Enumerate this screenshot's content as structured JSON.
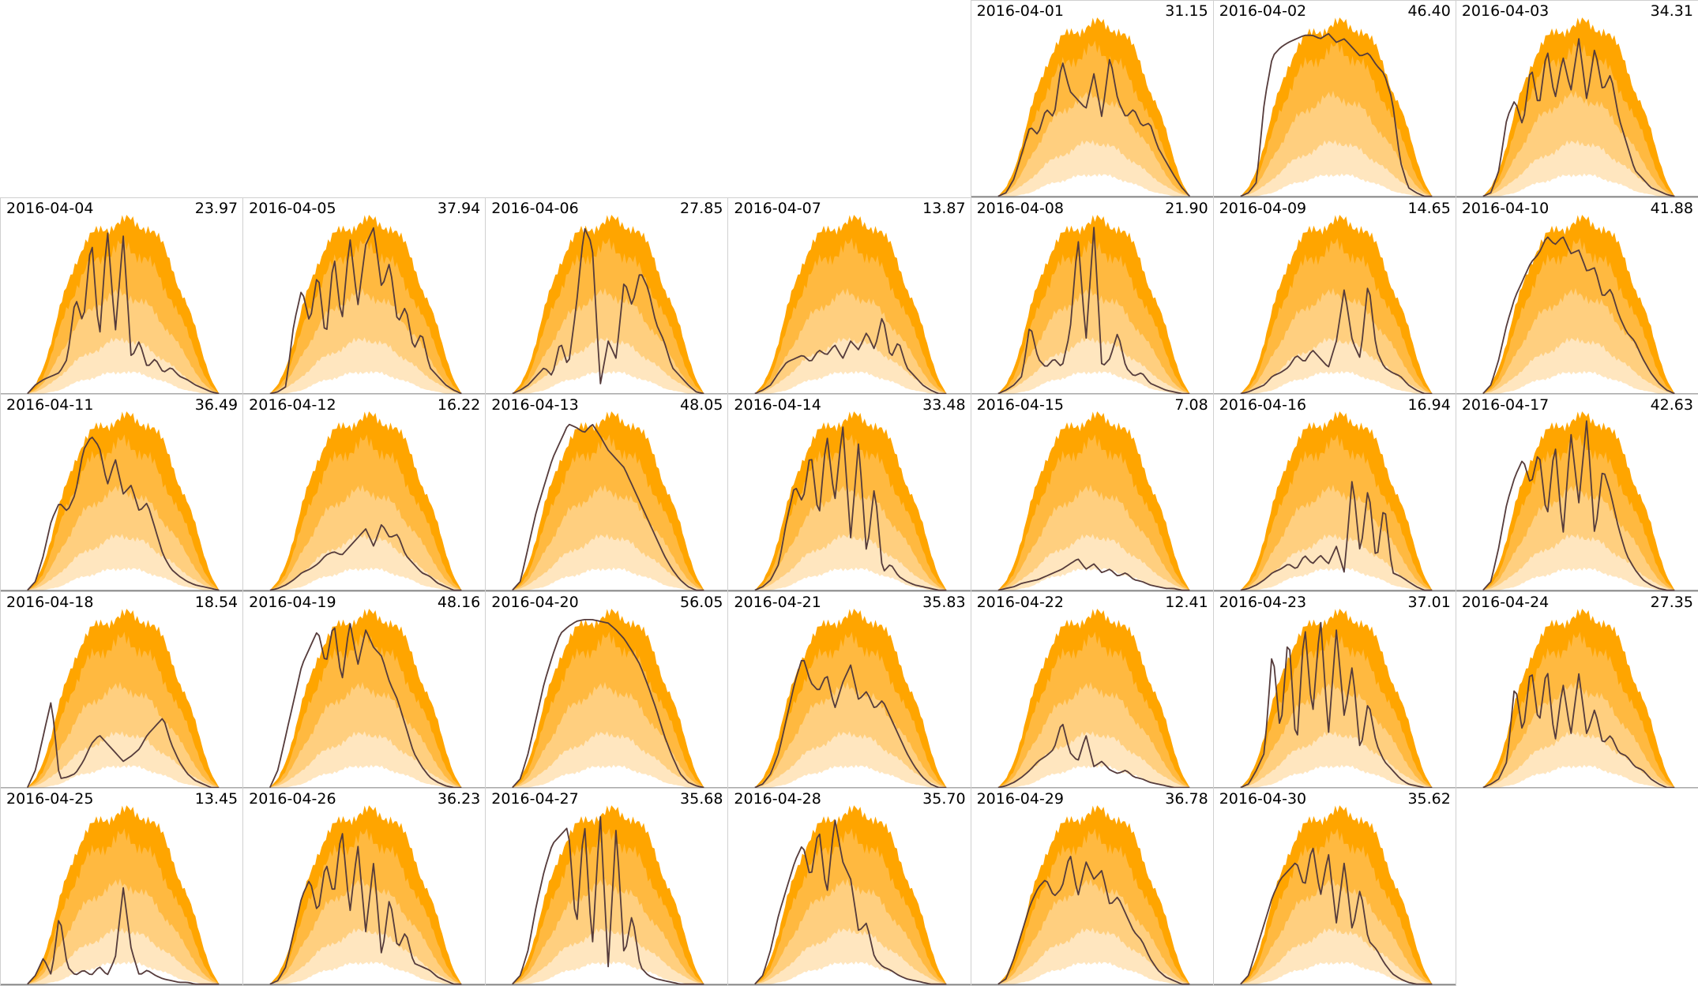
{
  "chart_data": {
    "type": "area",
    "title": "",
    "layout": "calendar",
    "month": "2016-04",
    "first_weekday_column": 4,
    "columns": 7,
    "colors": {
      "band_max": "#ffa500",
      "band_p75": "#ffb940",
      "band_p50": "#ffcf7f",
      "band_p25": "#ffe6bf",
      "band_min": "#ffffff",
      "line": "#553b3b",
      "border": "#d0d0d0",
      "axis": "#777777"
    },
    "bands": {
      "max": [
        0,
        0.05,
        0.15,
        0.3,
        0.48,
        0.62,
        0.75,
        0.85,
        0.9,
        0.93,
        0.95,
        0.97,
        0.98,
        0.99,
        0.97,
        0.95,
        0.9,
        0.85,
        0.75,
        0.6,
        0.5,
        0.38,
        0.22,
        0.08,
        0
      ],
      "p75": [
        0,
        0.03,
        0.1,
        0.22,
        0.36,
        0.5,
        0.6,
        0.68,
        0.74,
        0.78,
        0.8,
        0.82,
        0.84,
        0.83,
        0.8,
        0.76,
        0.7,
        0.62,
        0.55,
        0.45,
        0.35,
        0.24,
        0.12,
        0.04,
        0
      ],
      "p50": [
        0,
        0.02,
        0.06,
        0.13,
        0.22,
        0.3,
        0.38,
        0.44,
        0.48,
        0.52,
        0.55,
        0.56,
        0.57,
        0.56,
        0.53,
        0.5,
        0.46,
        0.4,
        0.34,
        0.27,
        0.2,
        0.13,
        0.06,
        0.02,
        0
      ],
      "p25": [
        0,
        0.01,
        0.03,
        0.06,
        0.1,
        0.14,
        0.18,
        0.21,
        0.24,
        0.26,
        0.28,
        0.3,
        0.32,
        0.3,
        0.28,
        0.26,
        0.23,
        0.2,
        0.16,
        0.12,
        0.09,
        0.06,
        0.03,
        0.01,
        0
      ],
      "min": [
        0,
        0,
        0,
        0.01,
        0.02,
        0.04,
        0.06,
        0.08,
        0.09,
        0.1,
        0.11,
        0.12,
        0.13,
        0.12,
        0.11,
        0.1,
        0.09,
        0.07,
        0.05,
        0.03,
        0.02,
        0.01,
        0,
        0,
        0
      ]
    },
    "days": [
      {
        "date": "2016-04-01",
        "total": "31.15",
        "profile": [
          0,
          0.02,
          0.1,
          0.25,
          0.4,
          0.35,
          0.5,
          0.45,
          0.78,
          0.6,
          0.55,
          0.5,
          0.7,
          0.45,
          0.8,
          0.55,
          0.45,
          0.5,
          0.4,
          0.42,
          0.28,
          0.2,
          0.12,
          0.05,
          0
        ]
      },
      {
        "date": "2016-04-02",
        "total": "46.40",
        "profile": [
          0,
          0.02,
          0.08,
          0.55,
          0.8,
          0.85,
          0.88,
          0.9,
          0.92,
          0.92,
          0.9,
          0.93,
          0.88,
          0.9,
          0.85,
          0.8,
          0.82,
          0.75,
          0.7,
          0.55,
          0.2,
          0.05,
          0.02,
          0,
          0
        ]
      },
      {
        "date": "2016-04-03",
        "total": "34.31",
        "profile": [
          0,
          0.02,
          0.15,
          0.45,
          0.55,
          0.4,
          0.75,
          0.5,
          0.85,
          0.55,
          0.8,
          0.6,
          0.9,
          0.55,
          0.85,
          0.6,
          0.7,
          0.45,
          0.3,
          0.15,
          0.1,
          0.05,
          0.03,
          0.01,
          0
        ]
      },
      {
        "date": "2016-04-04",
        "total": "23.97",
        "profile": [
          0,
          0.05,
          0.08,
          0.1,
          0.12,
          0.2,
          0.55,
          0.4,
          0.9,
          0.3,
          0.95,
          0.35,
          0.9,
          0.2,
          0.3,
          0.15,
          0.2,
          0.12,
          0.15,
          0.1,
          0.08,
          0.05,
          0.03,
          0.01,
          0
        ]
      },
      {
        "date": "2016-04-05",
        "total": "37.94",
        "profile": [
          0,
          0.01,
          0.04,
          0.4,
          0.6,
          0.4,
          0.7,
          0.3,
          0.8,
          0.4,
          0.9,
          0.5,
          0.85,
          0.95,
          0.6,
          0.75,
          0.4,
          0.5,
          0.25,
          0.35,
          0.15,
          0.1,
          0.05,
          0.02,
          0
        ]
      },
      {
        "date": "2016-04-06",
        "total": "27.85",
        "profile": [
          0,
          0.02,
          0.05,
          0.1,
          0.15,
          0.1,
          0.3,
          0.15,
          0.5,
          0.95,
          0.85,
          0.05,
          0.3,
          0.2,
          0.65,
          0.5,
          0.7,
          0.6,
          0.4,
          0.3,
          0.15,
          0.1,
          0.05,
          0.01,
          0
        ]
      },
      {
        "date": "2016-04-07",
        "total": "13.87",
        "profile": [
          0,
          0.02,
          0.05,
          0.12,
          0.18,
          0.2,
          0.22,
          0.18,
          0.25,
          0.22,
          0.28,
          0.2,
          0.3,
          0.25,
          0.35,
          0.25,
          0.45,
          0.2,
          0.3,
          0.15,
          0.1,
          0.05,
          0.02,
          0,
          0
        ]
      },
      {
        "date": "2016-04-08",
        "total": "21.90",
        "profile": [
          0,
          0.02,
          0.05,
          0.1,
          0.4,
          0.2,
          0.15,
          0.2,
          0.15,
          0.35,
          0.9,
          0.3,
          0.95,
          0.15,
          0.2,
          0.35,
          0.15,
          0.1,
          0.12,
          0.06,
          0.04,
          0.02,
          0.01,
          0,
          0
        ]
      },
      {
        "date": "2016-04-09",
        "total": "14.65",
        "profile": [
          0,
          0.01,
          0.03,
          0.05,
          0.1,
          0.12,
          0.15,
          0.22,
          0.18,
          0.25,
          0.2,
          0.15,
          0.3,
          0.6,
          0.3,
          0.2,
          0.65,
          0.25,
          0.15,
          0.12,
          0.1,
          0.05,
          0.02,
          0,
          0
        ]
      },
      {
        "date": "2016-04-10",
        "total": "41.88",
        "profile": [
          0,
          0.05,
          0.2,
          0.4,
          0.55,
          0.65,
          0.75,
          0.8,
          0.9,
          0.85,
          0.9,
          0.8,
          0.82,
          0.7,
          0.72,
          0.55,
          0.6,
          0.45,
          0.35,
          0.3,
          0.2,
          0.12,
          0.06,
          0.02,
          0
        ]
      },
      {
        "date": "2016-04-11",
        "total": "36.49",
        "profile": [
          0,
          0.05,
          0.2,
          0.4,
          0.5,
          0.45,
          0.55,
          0.8,
          0.88,
          0.82,
          0.6,
          0.75,
          0.55,
          0.6,
          0.45,
          0.5,
          0.35,
          0.2,
          0.12,
          0.08,
          0.05,
          0.03,
          0.02,
          0.01,
          0
        ]
      },
      {
        "date": "2016-04-12",
        "total": "16.22",
        "profile": [
          0,
          0.01,
          0.03,
          0.06,
          0.1,
          0.12,
          0.15,
          0.2,
          0.22,
          0.2,
          0.25,
          0.3,
          0.35,
          0.25,
          0.38,
          0.3,
          0.32,
          0.2,
          0.15,
          0.1,
          0.08,
          0.04,
          0.02,
          0,
          0
        ]
      },
      {
        "date": "2016-04-13",
        "total": "48.05",
        "profile": [
          0,
          0.05,
          0.25,
          0.45,
          0.6,
          0.75,
          0.85,
          0.95,
          0.93,
          0.9,
          0.95,
          0.88,
          0.8,
          0.75,
          0.7,
          0.6,
          0.5,
          0.4,
          0.3,
          0.2,
          0.12,
          0.06,
          0.02,
          0,
          0
        ]
      },
      {
        "date": "2016-04-14",
        "total": "33.48",
        "profile": [
          0,
          0.02,
          0.06,
          0.15,
          0.4,
          0.6,
          0.5,
          0.8,
          0.4,
          0.9,
          0.5,
          0.95,
          0.3,
          0.85,
          0.2,
          0.6,
          0.1,
          0.15,
          0.08,
          0.05,
          0.03,
          0.02,
          0.01,
          0,
          0
        ]
      },
      {
        "date": "2016-04-15",
        "total": "7.08",
        "profile": [
          0,
          0.01,
          0.02,
          0.04,
          0.05,
          0.06,
          0.08,
          0.1,
          0.12,
          0.15,
          0.18,
          0.12,
          0.15,
          0.1,
          0.12,
          0.08,
          0.1,
          0.06,
          0.05,
          0.03,
          0.02,
          0.01,
          0.01,
          0,
          0
        ]
      },
      {
        "date": "2016-04-16",
        "total": "16.94",
        "profile": [
          0,
          0.01,
          0.03,
          0.06,
          0.1,
          0.12,
          0.15,
          0.12,
          0.2,
          0.15,
          0.2,
          0.15,
          0.25,
          0.1,
          0.65,
          0.2,
          0.6,
          0.15,
          0.5,
          0.1,
          0.08,
          0.05,
          0.02,
          0,
          0
        ]
      },
      {
        "date": "2016-04-17",
        "total": "42.63",
        "profile": [
          0,
          0.05,
          0.25,
          0.5,
          0.65,
          0.75,
          0.6,
          0.8,
          0.4,
          0.85,
          0.3,
          0.9,
          0.5,
          0.98,
          0.3,
          0.7,
          0.55,
          0.35,
          0.2,
          0.12,
          0.06,
          0.03,
          0.01,
          0,
          0
        ]
      },
      {
        "date": "2016-04-18",
        "total": "18.54",
        "profile": [
          0,
          0.1,
          0.3,
          0.5,
          0.05,
          0.06,
          0.08,
          0.15,
          0.25,
          0.3,
          0.25,
          0.2,
          0.15,
          0.18,
          0.22,
          0.3,
          0.35,
          0.4,
          0.25,
          0.15,
          0.08,
          0.04,
          0.02,
          0,
          0
        ]
      },
      {
        "date": "2016-04-19",
        "total": "48.16",
        "profile": [
          0,
          0.1,
          0.3,
          0.5,
          0.7,
          0.8,
          0.9,
          0.7,
          0.95,
          0.6,
          0.95,
          0.7,
          0.9,
          0.8,
          0.75,
          0.6,
          0.5,
          0.35,
          0.2,
          0.12,
          0.06,
          0.03,
          0.01,
          0,
          0
        ]
      },
      {
        "date": "2016-04-20",
        "total": "56.05",
        "profile": [
          0,
          0.05,
          0.2,
          0.4,
          0.6,
          0.75,
          0.88,
          0.92,
          0.95,
          0.96,
          0.96,
          0.95,
          0.94,
          0.9,
          0.85,
          0.78,
          0.7,
          0.58,
          0.45,
          0.3,
          0.18,
          0.08,
          0.03,
          0.01,
          0
        ]
      },
      {
        "date": "2016-04-21",
        "total": "35.83",
        "profile": [
          0,
          0.02,
          0.08,
          0.2,
          0.4,
          0.6,
          0.75,
          0.6,
          0.55,
          0.65,
          0.45,
          0.6,
          0.7,
          0.5,
          0.55,
          0.45,
          0.5,
          0.4,
          0.3,
          0.2,
          0.12,
          0.06,
          0.02,
          0,
          0
        ]
      },
      {
        "date": "2016-04-22",
        "total": "12.41",
        "profile": [
          0,
          0.01,
          0.03,
          0.06,
          0.1,
          0.15,
          0.18,
          0.22,
          0.38,
          0.2,
          0.15,
          0.3,
          0.12,
          0.15,
          0.1,
          0.08,
          0.1,
          0.06,
          0.05,
          0.03,
          0.02,
          0.01,
          0,
          0,
          0
        ]
      },
      {
        "date": "2016-04-23",
        "total": "37.01",
        "profile": [
          0,
          0.02,
          0.1,
          0.2,
          0.8,
          0.3,
          0.9,
          0.2,
          0.95,
          0.4,
          0.98,
          0.3,
          0.9,
          0.4,
          0.7,
          0.2,
          0.5,
          0.25,
          0.15,
          0.1,
          0.05,
          0.02,
          0.01,
          0,
          0
        ]
      },
      {
        "date": "2016-04-24",
        "total": "27.35",
        "profile": [
          0,
          0.02,
          0.05,
          0.15,
          0.6,
          0.3,
          0.7,
          0.35,
          0.7,
          0.25,
          0.6,
          0.3,
          0.65,
          0.3,
          0.45,
          0.25,
          0.3,
          0.2,
          0.18,
          0.12,
          0.1,
          0.05,
          0.02,
          0,
          0
        ]
      },
      {
        "date": "2016-04-25",
        "total": "13.45",
        "profile": [
          0,
          0.05,
          0.15,
          0.05,
          0.4,
          0.1,
          0.05,
          0.08,
          0.05,
          0.1,
          0.05,
          0.15,
          0.55,
          0.2,
          0.05,
          0.08,
          0.05,
          0.03,
          0.02,
          0.01,
          0.01,
          0,
          0,
          0,
          0
        ]
      },
      {
        "date": "2016-04-26",
        "total": "36.23",
        "profile": [
          0,
          0.02,
          0.1,
          0.3,
          0.5,
          0.6,
          0.4,
          0.7,
          0.5,
          0.9,
          0.4,
          0.8,
          0.3,
          0.7,
          0.15,
          0.5,
          0.2,
          0.3,
          0.12,
          0.1,
          0.08,
          0.04,
          0.02,
          0,
          0
        ]
      },
      {
        "date": "2016-04-27",
        "total": "35.68",
        "profile": [
          0,
          0.05,
          0.2,
          0.45,
          0.65,
          0.8,
          0.85,
          0.9,
          0.3,
          0.95,
          0.2,
          0.98,
          0.1,
          0.9,
          0.15,
          0.4,
          0.1,
          0.05,
          0.03,
          0.02,
          0.01,
          0,
          0,
          0,
          0
        ]
      },
      {
        "date": "2016-04-28",
        "total": "35.70",
        "profile": [
          0,
          0.05,
          0.2,
          0.4,
          0.55,
          0.7,
          0.8,
          0.6,
          0.9,
          0.5,
          0.95,
          0.7,
          0.6,
          0.3,
          0.35,
          0.15,
          0.1,
          0.08,
          0.05,
          0.03,
          0.02,
          0.01,
          0,
          0,
          0
        ]
      },
      {
        "date": "2016-04-29",
        "total": "36.78",
        "profile": [
          0,
          0.03,
          0.15,
          0.3,
          0.45,
          0.55,
          0.6,
          0.5,
          0.55,
          0.75,
          0.5,
          0.7,
          0.6,
          0.65,
          0.45,
          0.5,
          0.4,
          0.3,
          0.25,
          0.15,
          0.08,
          0.04,
          0.02,
          0,
          0
        ]
      },
      {
        "date": "2016-04-30",
        "total": "35.62",
        "profile": [
          0,
          0.05,
          0.2,
          0.35,
          0.5,
          0.6,
          0.65,
          0.7,
          0.55,
          0.8,
          0.5,
          0.75,
          0.35,
          0.7,
          0.3,
          0.55,
          0.25,
          0.2,
          0.12,
          0.06,
          0.03,
          0.01,
          0,
          0,
          0
        ]
      }
    ]
  }
}
